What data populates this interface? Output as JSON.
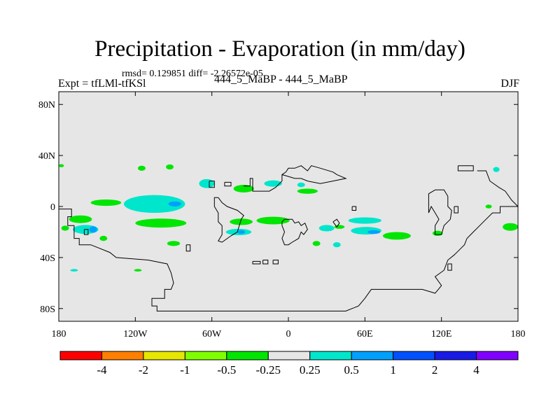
{
  "chart_data": {
    "type": "filled-contour-map",
    "title": "Precipitation - Evaporation (in mm/day)",
    "stats": "rmsd= 0.129851 diff= -2.26572e-05",
    "left_label": "Expt = tfLMl-tfKSl",
    "center_label": "444_5_MaBP - 444_5_MaBP",
    "right_label": "DJF",
    "background_color": "#e6e6e6",
    "coast_color": "#000000",
    "xlim": [
      -180,
      180
    ],
    "ylim": [
      -90,
      90
    ],
    "x_ticks": [
      {
        "value": -180,
        "label": "180"
      },
      {
        "value": -120,
        "label": "120W"
      },
      {
        "value": -60,
        "label": "60W"
      },
      {
        "value": 0,
        "label": "0"
      },
      {
        "value": 60,
        "label": "60E"
      },
      {
        "value": 120,
        "label": "120E"
      },
      {
        "value": 180,
        "label": "180"
      }
    ],
    "y_ticks": [
      {
        "value": 80,
        "label": "80N"
      },
      {
        "value": 40,
        "label": "40N"
      },
      {
        "value": 0,
        "label": "0"
      },
      {
        "value": -40,
        "label": "40S"
      },
      {
        "value": -80,
        "label": "80S"
      }
    ],
    "colorbar": {
      "colors": [
        "#ff0000",
        "#ff7f00",
        "#e6e600",
        "#80ff00",
        "#00e600",
        "#e6e6e6",
        "#00e6cc",
        "#00a0ff",
        "#0050ff",
        "#1a1ae6",
        "#8000ff"
      ],
      "labels": [
        "-4",
        "-2",
        "-1",
        "-0.5",
        "-0.25",
        "0.25",
        "0.5",
        "1",
        "2",
        "4"
      ]
    },
    "anomaly_patches": [
      {
        "lon": -105,
        "lat": 2,
        "rx": 24,
        "ry": 7,
        "color": "#00e6cc"
      },
      {
        "lon": -89,
        "lat": 2,
        "rx": 5,
        "ry": 2,
        "color": "#00a0ff"
      },
      {
        "lon": -100,
        "lat": -13,
        "rx": 20,
        "ry": 3.5,
        "color": "#00e600"
      },
      {
        "lon": -143,
        "lat": 3,
        "rx": 12,
        "ry": 2.5,
        "color": "#00e600"
      },
      {
        "lon": -163,
        "lat": -10,
        "rx": 9,
        "ry": 3,
        "color": "#00e600"
      },
      {
        "lon": -159,
        "lat": -18,
        "rx": 10,
        "ry": 3.5,
        "color": "#00e6cc"
      },
      {
        "lon": -153,
        "lat": -18,
        "rx": 3,
        "ry": 2.5,
        "color": "#00a0ff"
      },
      {
        "lon": -175,
        "lat": -17,
        "rx": 3,
        "ry": 2,
        "color": "#00e600"
      },
      {
        "lon": -145,
        "lat": -25,
        "rx": 3,
        "ry": 2,
        "color": "#00e600"
      },
      {
        "lon": -90,
        "lat": -29,
        "rx": 5,
        "ry": 2,
        "color": "#00e600"
      },
      {
        "lon": -64,
        "lat": 18,
        "rx": 6,
        "ry": 3.5,
        "color": "#00e6cc"
      },
      {
        "lon": -93,
        "lat": 31,
        "rx": 3,
        "ry": 2,
        "color": "#00e600"
      },
      {
        "lon": -35,
        "lat": 14,
        "rx": 8,
        "ry": 3,
        "color": "#00e600"
      },
      {
        "lon": -12,
        "lat": 18,
        "rx": 7,
        "ry": 2.5,
        "color": "#00e6cc"
      },
      {
        "lon": 15,
        "lat": 12,
        "rx": 8,
        "ry": 2,
        "color": "#00e600"
      },
      {
        "lon": 10,
        "lat": 17,
        "rx": 3,
        "ry": 1.8,
        "color": "#00e6cc"
      },
      {
        "lon": -12,
        "lat": -11,
        "rx": 13,
        "ry": 3,
        "color": "#00e600"
      },
      {
        "lon": -37,
        "lat": -12,
        "rx": 9,
        "ry": 2.5,
        "color": "#00e600"
      },
      {
        "lon": -39,
        "lat": -20,
        "rx": 10,
        "ry": 2.5,
        "color": "#00e6cc"
      },
      {
        "lon": -37,
        "lat": -20,
        "rx": 3,
        "ry": 1.5,
        "color": "#00a0ff"
      },
      {
        "lon": 60,
        "lat": -11,
        "rx": 13,
        "ry": 2.5,
        "color": "#00e6cc"
      },
      {
        "lon": 30,
        "lat": -17,
        "rx": 6,
        "ry": 2.5,
        "color": "#00e6cc"
      },
      {
        "lon": 61,
        "lat": -19,
        "rx": 12,
        "ry": 3,
        "color": "#00e6cc"
      },
      {
        "lon": 67,
        "lat": -20,
        "rx": 5,
        "ry": 1.5,
        "color": "#00a0ff"
      },
      {
        "lon": 85,
        "lat": -23,
        "rx": 11,
        "ry": 3,
        "color": "#00e600"
      },
      {
        "lon": 40,
        "lat": -16,
        "rx": 4,
        "ry": 1.5,
        "color": "#00e600"
      },
      {
        "lon": 22,
        "lat": -29,
        "rx": 3,
        "ry": 2,
        "color": "#00e600"
      },
      {
        "lon": 38,
        "lat": -30,
        "rx": 3,
        "ry": 2,
        "color": "#00e6cc"
      },
      {
        "lon": 117,
        "lat": -21,
        "rx": 4,
        "ry": 2,
        "color": "#00e600"
      },
      {
        "lon": 174,
        "lat": -16,
        "rx": 6,
        "ry": 3,
        "color": "#00e600"
      },
      {
        "lon": 163,
        "lat": 29,
        "rx": 2.5,
        "ry": 2,
        "color": "#00e6cc"
      },
      {
        "lon": 157,
        "lat": 0,
        "rx": 2.5,
        "ry": 1.5,
        "color": "#00e600"
      },
      {
        "lon": -115,
        "lat": 30,
        "rx": 3,
        "ry": 2,
        "color": "#00e600"
      },
      {
        "lon": -118,
        "lat": -50,
        "rx": 3,
        "ry": 1,
        "color": "#00e600"
      },
      {
        "lon": -168,
        "lat": -50,
        "rx": 3,
        "ry": 1,
        "color": "#00e6cc"
      },
      {
        "lon": -178,
        "lat": 32,
        "rx": 2,
        "ry": 1.2,
        "color": "#00e600"
      }
    ],
    "coastlines": [
      [
        [
          -180,
          -2
        ],
        [
          -175,
          -2
        ],
        [
          -170,
          -2
        ],
        [
          -170,
          -8
        ],
        [
          -173,
          -8
        ],
        [
          -173,
          -15
        ],
        [
          -168,
          -15
        ],
        [
          -168,
          -25
        ],
        [
          -164,
          -25
        ],
        [
          -164,
          -30
        ],
        [
          -155,
          -30
        ],
        [
          -150,
          -32
        ],
        [
          -140,
          -36
        ],
        [
          -135,
          -40
        ],
        [
          -110,
          -42
        ],
        [
          -95,
          -45
        ],
        [
          -92,
          -52
        ],
        [
          -90,
          -60
        ],
        [
          -92,
          -65
        ],
        [
          -97,
          -65
        ],
        [
          -97,
          -72
        ],
        [
          -107,
          -72
        ],
        [
          -107,
          -78
        ],
        [
          -103,
          -78
        ],
        [
          -103,
          -82
        ],
        [
          -98,
          -82
        ],
        [
          -80,
          -82
        ],
        [
          -40,
          -82
        ],
        [
          10,
          -82
        ],
        [
          30,
          -82
        ],
        [
          45,
          -82
        ],
        [
          55,
          -78
        ],
        [
          60,
          -72
        ],
        [
          65,
          -65
        ],
        [
          105,
          -65
        ],
        [
          115,
          -68
        ],
        [
          120,
          -62
        ],
        [
          115,
          -55
        ],
        [
          122,
          -50
        ],
        [
          125,
          -42
        ],
        [
          130,
          -38
        ],
        [
          133,
          -35
        ],
        [
          138,
          -30
        ],
        [
          140,
          -25
        ],
        [
          145,
          -20
        ],
        [
          150,
          -15
        ],
        [
          155,
          -10
        ],
        [
          160,
          -5
        ],
        [
          166,
          -5
        ],
        [
          166,
          0
        ],
        [
          170,
          0
        ],
        [
          176,
          0
        ],
        [
          180,
          0
        ]
      ],
      [
        [
          -55,
          7
        ],
        [
          -58,
          7
        ],
        [
          -58,
          0
        ],
        [
          -55,
          -5
        ],
        [
          -55,
          -12
        ],
        [
          -52,
          -15
        ],
        [
          -52,
          -22
        ],
        [
          -55,
          -27
        ],
        [
          -52,
          -28
        ],
        [
          -45,
          -23
        ],
        [
          -40,
          -20
        ],
        [
          -37,
          -10
        ],
        [
          -35,
          -7
        ],
        [
          -40,
          -3
        ],
        [
          -48,
          0
        ],
        [
          -52,
          3
        ],
        [
          -55,
          7
        ]
      ],
      [
        [
          -35,
          16
        ],
        [
          -30,
          16
        ],
        [
          -30,
          22
        ],
        [
          -28,
          22
        ],
        [
          -28,
          12
        ],
        [
          -18,
          12
        ],
        [
          -15,
          12
        ],
        [
          -10,
          15
        ],
        [
          -5,
          20
        ],
        [
          -5,
          25
        ],
        [
          -2,
          27
        ],
        [
          0,
          30
        ],
        [
          5,
          30
        ],
        [
          10,
          32
        ],
        [
          15,
          28
        ],
        [
          18,
          32
        ],
        [
          25,
          30
        ],
        [
          35,
          27
        ],
        [
          38,
          25
        ],
        [
          45,
          22
        ],
        [
          35,
          20
        ],
        [
          25,
          18
        ],
        [
          15,
          20
        ],
        [
          10,
          22
        ],
        [
          5,
          22
        ],
        [
          -5,
          25
        ]
      ],
      [
        [
          -5,
          -12
        ],
        [
          -3,
          -10
        ],
        [
          3,
          -10
        ],
        [
          5,
          -13
        ],
        [
          8,
          -12
        ],
        [
          10,
          -15
        ],
        [
          13,
          -13
        ],
        [
          15,
          -18
        ],
        [
          12,
          -22
        ],
        [
          10,
          -20
        ],
        [
          8,
          -25
        ],
        [
          3,
          -28
        ],
        [
          0,
          -30
        ],
        [
          -3,
          -30
        ],
        [
          -5,
          -25
        ],
        [
          -3,
          -20
        ],
        [
          -5,
          -15
        ],
        [
          -5,
          -12
        ]
      ],
      [
        [
          35,
          -12
        ],
        [
          38,
          -10
        ],
        [
          40,
          -13
        ],
        [
          38,
          -16
        ],
        [
          35,
          -12
        ]
      ],
      [
        [
          -28,
          -43
        ],
        [
          -22,
          -43
        ],
        [
          -22,
          -45
        ],
        [
          -28,
          -45
        ],
        [
          -28,
          -43
        ]
      ],
      [
        [
          -12,
          -42
        ],
        [
          -8,
          -42
        ],
        [
          -8,
          -45
        ],
        [
          -12,
          -45
        ],
        [
          -12,
          -42
        ]
      ],
      [
        [
          -20,
          -42
        ],
        [
          -16,
          -42
        ],
        [
          -16,
          -45
        ],
        [
          -20,
          -45
        ],
        [
          -20,
          -42
        ]
      ],
      [
        [
          133,
          32
        ],
        [
          145,
          32
        ],
        [
          145,
          28
        ],
        [
          138,
          28
        ],
        [
          133,
          28
        ],
        [
          133,
          32
        ]
      ],
      [
        [
          148,
          28
        ],
        [
          155,
          28
        ],
        [
          158,
          20
        ],
        [
          165,
          15
        ],
        [
          170,
          12
        ],
        [
          175,
          5
        ],
        [
          180,
          0
        ]
      ],
      [
        [
          115,
          13
        ],
        [
          122,
          13
        ],
        [
          125,
          8
        ],
        [
          125,
          0
        ],
        [
          128,
          -3
        ],
        [
          127,
          -10
        ],
        [
          122,
          -15
        ],
        [
          120,
          -22
        ],
        [
          115,
          -22
        ],
        [
          115,
          -15
        ],
        [
          118,
          -10
        ],
        [
          115,
          -5
        ],
        [
          112,
          0
        ],
        [
          110,
          -5
        ],
        [
          110,
          10
        ],
        [
          115,
          13
        ]
      ],
      [
        [
          130,
          0
        ],
        [
          133,
          0
        ],
        [
          133,
          -5
        ],
        [
          130,
          -5
        ],
        [
          130,
          0
        ]
      ],
      [
        [
          -62,
          20
        ],
        [
          -58,
          20
        ],
        [
          -58,
          15
        ],
        [
          -62,
          15
        ],
        [
          -62,
          20
        ]
      ],
      [
        [
          -50,
          19
        ],
        [
          -45,
          19
        ],
        [
          -45,
          16
        ],
        [
          -50,
          16
        ],
        [
          -50,
          19
        ]
      ],
      [
        [
          125,
          -45
        ],
        [
          128,
          -45
        ],
        [
          128,
          -50
        ],
        [
          125,
          -50
        ],
        [
          125,
          -45
        ]
      ],
      [
        [
          -160,
          -18
        ],
        [
          -157,
          -18
        ],
        [
          -157,
          -22
        ],
        [
          -160,
          -22
        ],
        [
          -160,
          -18
        ]
      ],
      [
        [
          -80,
          -30
        ],
        [
          -77,
          -30
        ],
        [
          -77,
          -35
        ],
        [
          -80,
          -35
        ],
        [
          -80,
          -30
        ]
      ],
      [
        [
          50,
          0
        ],
        [
          53,
          0
        ],
        [
          53,
          -3
        ],
        [
          50,
          -3
        ],
        [
          50,
          0
        ]
      ]
    ]
  }
}
